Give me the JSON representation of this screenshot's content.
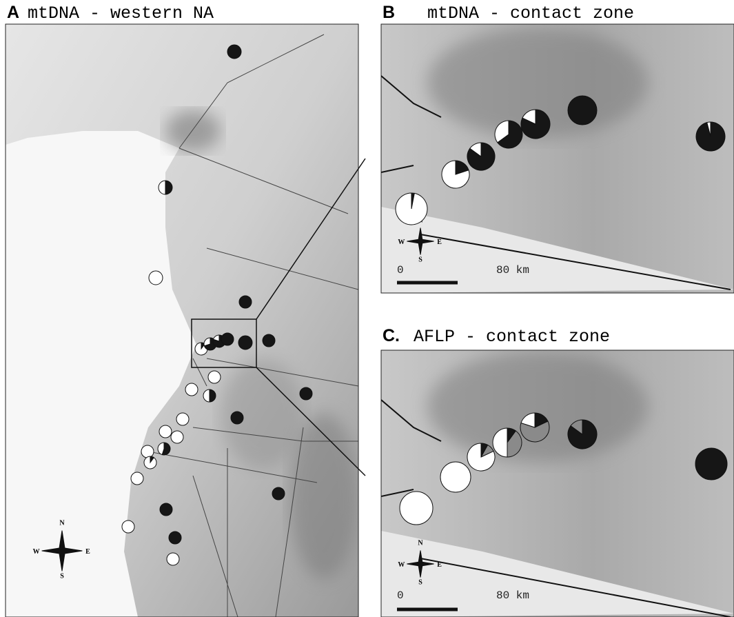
{
  "segment_colors": [
    "#161616",
    "#8a8a8a",
    "#ffffff"
  ],
  "panels": [
    {
      "label": "A",
      "title": "mtDNA - western NA",
      "compass": {
        "n": "N",
        "s": "S",
        "w": "W",
        "e": "E"
      },
      "sites": [
        [
          100,
          0,
          0
        ],
        [
          50,
          0,
          50
        ],
        [
          0,
          0,
          100
        ],
        [
          100,
          0,
          0
        ],
        [
          100,
          0,
          0
        ],
        [
          100,
          0,
          0
        ],
        [
          10,
          0,
          90
        ],
        [
          70,
          0,
          30
        ],
        [
          80,
          0,
          20
        ],
        [
          100,
          0,
          0
        ],
        [
          0,
          0,
          100
        ],
        [
          0,
          0,
          100
        ],
        [
          50,
          0,
          50
        ],
        [
          100,
          0,
          0
        ],
        [
          100,
          0,
          0
        ],
        [
          0,
          0,
          100
        ],
        [
          0,
          0,
          100
        ],
        [
          0,
          0,
          100
        ],
        [
          55,
          0,
          45
        ],
        [
          0,
          0,
          100
        ],
        [
          10,
          0,
          90
        ],
        [
          0,
          0,
          100
        ],
        [
          100,
          0,
          0
        ],
        [
          100,
          0,
          0
        ],
        [
          0,
          0,
          100
        ],
        [
          100,
          0,
          0
        ],
        [
          0,
          0,
          100
        ]
      ]
    },
    {
      "label": "B",
      "title": "mtDNA - contact zone",
      "compass": {
        "n": "N",
        "s": "S",
        "w": "W",
        "e": "E"
      },
      "scale": {
        "start": "0",
        "end": "80 km"
      },
      "sites": [
        [
          3,
          0,
          97
        ],
        [
          20,
          0,
          80
        ],
        [
          85,
          0,
          15
        ],
        [
          65,
          0,
          35
        ],
        [
          82,
          0,
          18
        ],
        [
          100,
          0,
          0
        ],
        [
          96,
          0,
          4
        ]
      ]
    },
    {
      "label": "C.",
      "title": "AFLP - contact zone",
      "compass": {
        "n": "N",
        "s": "S",
        "w": "W",
        "e": "E"
      },
      "scale": {
        "start": "0",
        "end": "80 km"
      },
      "sites": [
        [
          0,
          0,
          100
        ],
        [
          0,
          0,
          100
        ],
        [
          8,
          10,
          82
        ],
        [
          10,
          40,
          50
        ],
        [
          18,
          62,
          20
        ],
        [
          85,
          15,
          0
        ],
        [
          100,
          0,
          0
        ]
      ]
    }
  ]
}
